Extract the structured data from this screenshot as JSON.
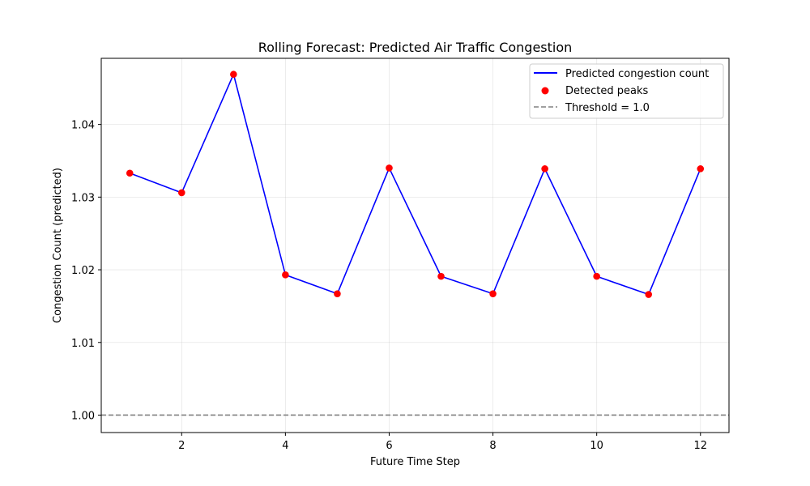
{
  "chart_data": {
    "type": "line",
    "title": "Rolling Forecast: Predicted Air Traffic Congestion",
    "xlabel": "Future Time Step",
    "ylabel": "Congestion Count (predicted)",
    "xlim": [
      0.45,
      12.55
    ],
    "ylim": [
      0.9976,
      1.0491
    ],
    "xticks": [
      2,
      4,
      6,
      8,
      10,
      12
    ],
    "xtick_labels": [
      "2",
      "4",
      "6",
      "8",
      "10",
      "12"
    ],
    "yticks": [
      1.0,
      1.01,
      1.02,
      1.03,
      1.04
    ],
    "ytick_labels": [
      "1.00",
      "1.01",
      "1.02",
      "1.03",
      "1.04"
    ],
    "grid": true,
    "legend_position": "top-right",
    "x": [
      1,
      2,
      3,
      4,
      5,
      6,
      7,
      8,
      9,
      10,
      11,
      12
    ],
    "series": [
      {
        "name": "Predicted congestion count",
        "kind": "line",
        "color": "#0000ff",
        "values": [
          1.0333,
          1.0306,
          1.0469,
          1.0193,
          1.0167,
          1.034,
          1.0191,
          1.0167,
          1.0339,
          1.0191,
          1.0166,
          1.0339
        ]
      },
      {
        "name": "Detected peaks",
        "kind": "scatter",
        "color": "#ff0000",
        "values": [
          1.0333,
          1.0306,
          1.0469,
          1.0193,
          1.0167,
          1.034,
          1.0191,
          1.0167,
          1.0339,
          1.0191,
          1.0166,
          1.0339
        ]
      }
    ],
    "threshold": {
      "name": "Threshold = 1.0",
      "value": 1.0,
      "color": "#808080",
      "style": "dashed"
    }
  }
}
